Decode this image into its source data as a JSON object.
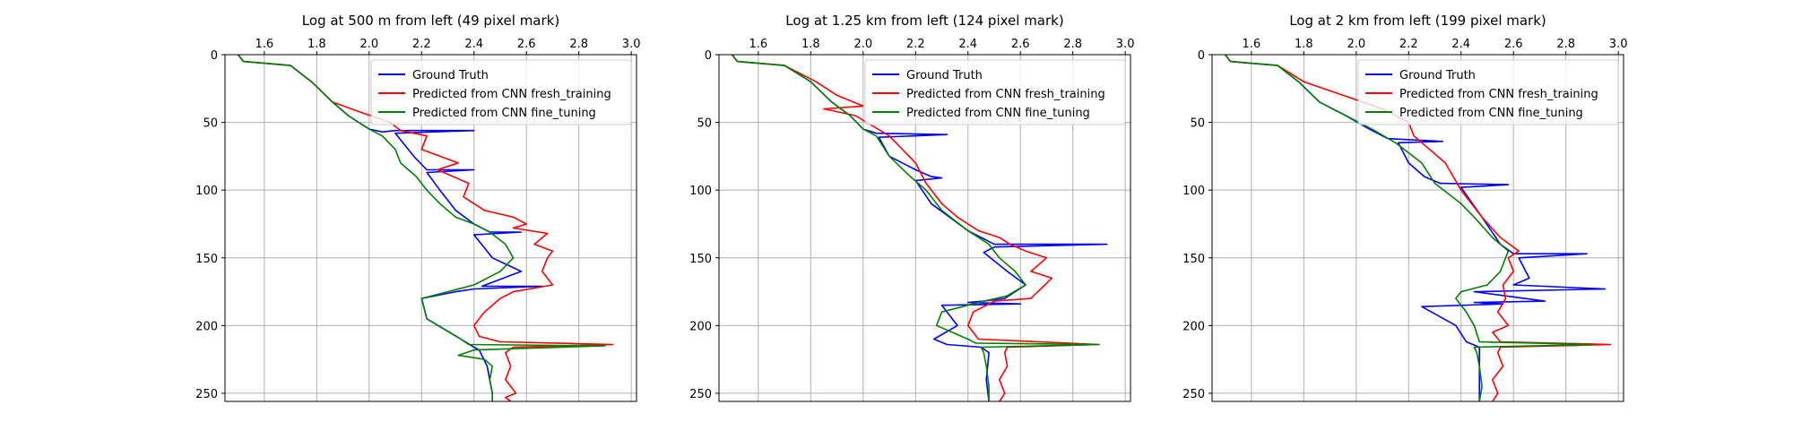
{
  "colors": {
    "ground_truth": "#0000ff",
    "fresh_training": "#ff0000",
    "fine_tuning": "#008000"
  },
  "chart_data": [
    {
      "type": "line",
      "title": "Log at 500 m from left (49 pixel mark)",
      "xlim": [
        1.45,
        3.02
      ],
      "ylim": [
        256,
        0
      ],
      "x_ticks": [
        1.6,
        1.8,
        2.0,
        2.2,
        2.4,
        2.6,
        2.8,
        3.0
      ],
      "x_tick_labels": [
        "1.6",
        "1.8",
        "2.0",
        "2.2",
        "2.4",
        "2.6",
        "2.8",
        "3.0"
      ],
      "y_ticks": [
        0,
        50,
        100,
        150,
        200,
        250
      ],
      "y_tick_labels": [
        "0",
        "50",
        "100",
        "150",
        "200",
        "250"
      ],
      "x_axis_position": "top",
      "grid": true,
      "legend_position": "upper-right",
      "series": [
        {
          "name": "Ground Truth",
          "color_key": "ground_truth",
          "x": [
            1.5,
            1.52,
            1.7,
            1.78,
            1.86,
            1.92,
            2.0,
            2.05,
            2.1,
            2.4,
            2.1,
            2.17,
            2.22,
            2.4,
            2.22,
            2.27,
            2.33,
            2.4,
            2.46,
            2.58,
            2.4,
            2.47,
            2.58,
            2.43,
            2.52,
            2.66,
            2.4,
            2.33,
            2.2,
            2.22,
            2.35,
            2.4,
            2.42,
            2.45,
            2.47,
            2.47
          ],
          "y": [
            0,
            5,
            8,
            20,
            35,
            45,
            55,
            57,
            56,
            56,
            58,
            75,
            85,
            85,
            87,
            100,
            115,
            125,
            131,
            131,
            133,
            150,
            160,
            171,
            171,
            171,
            173,
            175,
            180,
            195,
            210,
            216,
            218,
            230,
            250,
            256
          ]
        },
        {
          "name": "Predicted from CNN fresh_training",
          "color_key": "fresh_training",
          "x": [
            1.5,
            1.52,
            1.7,
            1.78,
            1.86,
            1.96,
            2.08,
            2.12,
            2.22,
            2.2,
            2.34,
            2.26,
            2.38,
            2.36,
            2.44,
            2.55,
            2.6,
            2.55,
            2.68,
            2.63,
            2.7,
            2.68,
            2.66,
            2.7,
            2.55,
            2.5,
            2.44,
            2.4,
            2.42,
            2.5,
            2.93,
            2.55,
            2.52,
            2.54,
            2.52,
            2.56,
            2.52,
            2.54
          ],
          "y": [
            0,
            5,
            8,
            20,
            35,
            42,
            50,
            56,
            60,
            70,
            80,
            85,
            95,
            105,
            115,
            120,
            125,
            128,
            132,
            140,
            145,
            150,
            160,
            170,
            175,
            180,
            190,
            200,
            208,
            212,
            214,
            216,
            220,
            230,
            240,
            250,
            253,
            256
          ]
        },
        {
          "name": "Predicted from CNN fine_tuning",
          "color_key": "fine_tuning",
          "x": [
            1.5,
            1.52,
            1.7,
            1.78,
            1.86,
            1.92,
            2.0,
            2.05,
            2.1,
            2.12,
            2.18,
            2.22,
            2.27,
            2.33,
            2.4,
            2.46,
            2.52,
            2.55,
            2.5,
            2.45,
            2.4,
            2.3,
            2.2,
            2.22,
            2.35,
            2.38,
            2.9,
            2.4,
            2.34,
            2.44,
            2.47,
            2.46,
            2.47,
            2.47
          ],
          "y": [
            0,
            5,
            8,
            20,
            35,
            45,
            55,
            60,
            70,
            80,
            90,
            100,
            110,
            120,
            125,
            131,
            140,
            150,
            160,
            165,
            170,
            175,
            180,
            195,
            210,
            214,
            215,
            218,
            222,
            225,
            230,
            240,
            250,
            256
          ]
        }
      ]
    },
    {
      "type": "line",
      "title": "Log at 1.25 km from left (124 pixel mark)",
      "xlim": [
        1.45,
        3.02
      ],
      "ylim": [
        256,
        0
      ],
      "x_ticks": [
        1.6,
        1.8,
        2.0,
        2.2,
        2.4,
        2.6,
        2.8,
        3.0
      ],
      "x_tick_labels": [
        "1.6",
        "1.8",
        "2.0",
        "2.2",
        "2.4",
        "2.6",
        "2.8",
        "3.0"
      ],
      "y_ticks": [
        0,
        50,
        100,
        150,
        200,
        250
      ],
      "y_tick_labels": [
        "0",
        "50",
        "100",
        "150",
        "200",
        "250"
      ],
      "x_axis_position": "top",
      "grid": true,
      "legend_position": "upper-right",
      "series": [
        {
          "name": "Ground Truth",
          "color_key": "ground_truth",
          "x": [
            1.5,
            1.52,
            1.7,
            1.8,
            1.88,
            1.95,
            2.0,
            2.05,
            2.32,
            2.06,
            2.1,
            2.2,
            2.26,
            2.3,
            2.2,
            2.26,
            2.4,
            2.5,
            2.93,
            2.5,
            2.46,
            2.55,
            2.62,
            2.54,
            2.46,
            2.4,
            2.6,
            2.3,
            2.36,
            2.27,
            2.32,
            2.45,
            2.48,
            2.47,
            2.48
          ],
          "y": [
            0,
            5,
            8,
            20,
            35,
            45,
            55,
            58,
            59,
            61,
            75,
            85,
            90,
            91,
            93,
            110,
            130,
            140,
            140,
            142,
            146,
            160,
            170,
            180,
            182,
            183,
            184,
            185,
            200,
            210,
            214,
            216,
            220,
            240,
            256
          ]
        },
        {
          "name": "Predicted from CNN fresh_training",
          "color_key": "fresh_training",
          "x": [
            1.5,
            1.52,
            1.7,
            1.82,
            1.9,
            2.0,
            1.85,
            1.97,
            2.1,
            2.2,
            2.24,
            2.3,
            2.36,
            2.4,
            2.44,
            2.52,
            2.56,
            2.62,
            2.7,
            2.64,
            2.72,
            2.64,
            2.5,
            2.42,
            2.4,
            2.44,
            2.9,
            2.55,
            2.54,
            2.55,
            2.52,
            2.54,
            2.52
          ],
          "y": [
            0,
            5,
            8,
            20,
            30,
            38,
            40,
            45,
            60,
            80,
            95,
            110,
            120,
            125,
            130,
            135,
            140,
            145,
            150,
            160,
            165,
            180,
            182,
            190,
            200,
            210,
            214,
            216,
            220,
            230,
            240,
            250,
            256
          ]
        },
        {
          "name": "Predicted from CNN fine_tuning",
          "color_key": "fine_tuning",
          "x": [
            1.5,
            1.52,
            1.7,
            1.8,
            1.88,
            1.95,
            2.0,
            2.05,
            2.1,
            2.18,
            2.24,
            2.3,
            2.4,
            2.48,
            2.52,
            2.58,
            2.62,
            2.55,
            2.46,
            2.4,
            2.3,
            2.28,
            2.4,
            2.43,
            2.9,
            2.45,
            2.46,
            2.47,
            2.48,
            2.48
          ],
          "y": [
            0,
            5,
            8,
            20,
            35,
            45,
            55,
            60,
            75,
            90,
            100,
            115,
            130,
            140,
            150,
            160,
            170,
            178,
            182,
            185,
            190,
            200,
            210,
            213,
            214,
            216,
            220,
            230,
            245,
            256
          ]
        }
      ]
    },
    {
      "type": "line",
      "title": "Log at 2 km from left (199 pixel mark)",
      "xlim": [
        1.45,
        3.02
      ],
      "ylim": [
        256,
        0
      ],
      "x_ticks": [
        1.6,
        1.8,
        2.0,
        2.2,
        2.4,
        2.6,
        2.8,
        3.0
      ],
      "x_tick_labels": [
        "1.6",
        "1.8",
        "2.0",
        "2.2",
        "2.4",
        "2.6",
        "2.8",
        "3.0"
      ],
      "y_ticks": [
        0,
        50,
        100,
        150,
        200,
        250
      ],
      "y_tick_labels": [
        "0",
        "50",
        "100",
        "150",
        "200",
        "250"
      ],
      "x_axis_position": "top",
      "grid": true,
      "legend_position": "upper-right",
      "series": [
        {
          "name": "Ground Truth",
          "color_key": "ground_truth",
          "x": [
            1.5,
            1.52,
            1.7,
            1.78,
            1.86,
            1.96,
            2.05,
            2.12,
            2.33,
            2.16,
            2.2,
            2.26,
            2.32,
            2.58,
            2.4,
            2.48,
            2.55,
            2.6,
            2.88,
            2.62,
            2.66,
            2.6,
            2.95,
            2.45,
            2.72,
            2.45,
            2.56,
            2.25,
            2.38,
            2.42,
            2.47,
            2.47
          ],
          "y": [
            0,
            5,
            8,
            20,
            35,
            45,
            55,
            62,
            64,
            65,
            80,
            90,
            95,
            96,
            98,
            120,
            140,
            147,
            147,
            150,
            165,
            170,
            173,
            175,
            182,
            183,
            184,
            186,
            200,
            212,
            216,
            256
          ]
        },
        {
          "name": "Predicted from CNN fresh_training",
          "color_key": "fresh_training",
          "x": [
            1.5,
            1.52,
            1.7,
            1.8,
            1.95,
            2.1,
            2.2,
            2.22,
            2.28,
            2.34,
            2.4,
            2.48,
            2.55,
            2.62,
            2.58,
            2.6,
            2.56,
            2.57,
            2.54,
            2.58,
            2.52,
            2.55,
            2.97,
            2.55,
            2.54,
            2.56,
            2.52,
            2.54,
            2.52
          ],
          "y": [
            0,
            5,
            8,
            20,
            30,
            40,
            50,
            60,
            70,
            80,
            100,
            120,
            135,
            145,
            150,
            160,
            170,
            180,
            190,
            200,
            205,
            212,
            214,
            216,
            220,
            230,
            240,
            250,
            256
          ]
        },
        {
          "name": "Predicted from CNN fine_tuning",
          "color_key": "fine_tuning",
          "x": [
            1.5,
            1.52,
            1.7,
            1.78,
            1.86,
            1.96,
            2.06,
            2.15,
            2.25,
            2.3,
            2.4,
            2.45,
            2.52,
            2.58,
            2.55,
            2.5,
            2.4,
            2.38,
            2.42,
            2.45,
            2.47,
            2.9,
            2.45,
            2.46,
            2.47,
            2.48,
            2.47
          ],
          "y": [
            0,
            5,
            8,
            20,
            35,
            45,
            55,
            65,
            80,
            95,
            110,
            120,
            135,
            145,
            160,
            170,
            175,
            180,
            190,
            200,
            212,
            214,
            216,
            220,
            230,
            245,
            256
          ]
        }
      ]
    }
  ]
}
